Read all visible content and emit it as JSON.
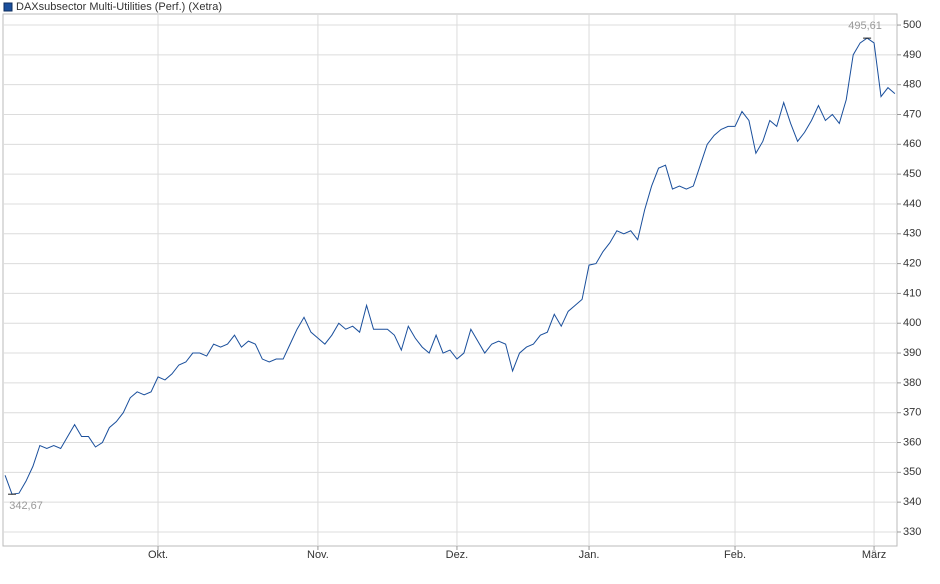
{
  "chart_data": {
    "type": "line",
    "series": [
      {
        "name": "DAXsubsector Multi-Utilities (Perf.) (Xetra)",
        "color": "#1a4f9c",
        "values": [
          349,
          342.67,
          343,
          347,
          352,
          359,
          358,
          359,
          358,
          362,
          366,
          362,
          362,
          358.5,
          360,
          365,
          367,
          370,
          375,
          377,
          376,
          377,
          382,
          381,
          383,
          386,
          387,
          390,
          390,
          389,
          393,
          392,
          393,
          396,
          392,
          394,
          393,
          388,
          387,
          388,
          388,
          393,
          398,
          402,
          397,
          395,
          393,
          396,
          400,
          398,
          399,
          397,
          406,
          398,
          398,
          398,
          396,
          391,
          399,
          395,
          392,
          390,
          396,
          390,
          391,
          388,
          390,
          398,
          394,
          390,
          393,
          394,
          393,
          384,
          390,
          392,
          393,
          396,
          397,
          403,
          399,
          404,
          406,
          408,
          419.5,
          420,
          424,
          427,
          431,
          430,
          431,
          428,
          438,
          446,
          452,
          453,
          445,
          446,
          445,
          446,
          453,
          460,
          463,
          465,
          466,
          466,
          471,
          468,
          457,
          461,
          468,
          466,
          474,
          467,
          461,
          464,
          468,
          473,
          468,
          470,
          467,
          475,
          490,
          494,
          495.61,
          494,
          476,
          479,
          477
        ]
      }
    ],
    "xlim": [
      -0.3,
      128.3
    ],
    "xticks": [
      {
        "value": 22,
        "label": "Okt."
      },
      {
        "value": 45,
        "label": "Nov."
      },
      {
        "value": 65,
        "label": "Dez."
      },
      {
        "value": 84,
        "label": "Jan."
      },
      {
        "value": 105,
        "label": "Feb."
      },
      {
        "value": 125,
        "label": "März"
      }
    ],
    "ylim": [
      325.3,
      503.7
    ],
    "yticks": [
      330,
      340,
      350,
      360,
      370,
      380,
      390,
      400,
      410,
      420,
      430,
      440,
      450,
      460,
      470,
      480,
      490,
      500
    ],
    "extremes": {
      "min": "342,67",
      "max": "495,61"
    },
    "grid": true
  }
}
